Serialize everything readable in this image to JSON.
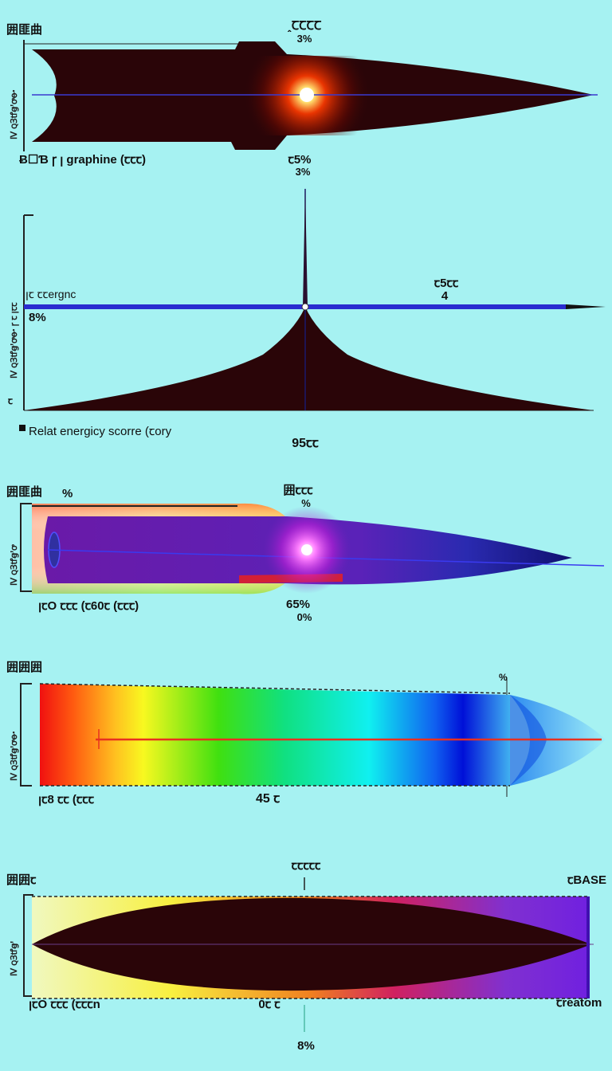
{
  "panels": [
    {
      "corner": "囲匪曲",
      "side": "Ⅳ ꞯꞫꝷꞡꞌꝍꝋꞏ",
      "bottom_left": "Ƀ☐Ɓ ꞅ ꞁ graphine (ꞇꞇꞇ)",
      "top_center": "ꞈꞆꞆꞆꞆ",
      "top_center_pct": "3%",
      "bottom_center": "ꞇ5%",
      "bottom_center_pct": "3%"
    },
    {
      "side": "Ⅳ ꞯꞫꝷꞡꞌꝍꝋꞏ ꞅ ꞇ ꞁꞇꞇ",
      "mid_left": "ꞁꞇ ꞇꞇergnc",
      "mid_left_pct": "8%",
      "low_left": "ꞇ",
      "right_label": "ꞇ5ꞇꞇ",
      "right_value": "4",
      "bottom_left": "Relat energicy scorre (ꞇory",
      "bottom_center": "95ꞇꞇ"
    },
    {
      "corner": "囲匪曲",
      "corner_pct": "%",
      "side": "Ⅳ ꞯꞫꝷꞡꞌꝍ",
      "top_center": "囲ꞇꞇꞇ",
      "top_center_pct": "%",
      "bottom_left": "ꞁꞇO ꞇꞇꞇ (ꞇ60ꞇ (ꞇꞇꞇ)",
      "bottom_center": "65%",
      "bottom_center_pct": "0%"
    },
    {
      "corner": "囲囲囲",
      "side": "Ⅳ ꞯꞫꝷꞡꞌꝍꝋꞏ",
      "top_right_mark": "%",
      "bottom_left": "ꞁꞇ8 ꞇꞇ (ꞇꞇꞇ",
      "bottom_center": "45 ꞇ"
    },
    {
      "corner": "囲囲ꞇ",
      "side": "Ⅳ ꞯꞫꝷꞡꞌ",
      "top_center": "ꞇꞇꞇꞇꞇ",
      "top_right": "ꞇBASE",
      "bottom_left": "ꞁꞇO ꞇꞇꞇ (ꞇꞇꞇn",
      "bottom_center": "0ꞇ ꞇ",
      "bottom_right": "ꞇreatom",
      "footer_pct": "8%"
    }
  ],
  "colors": {
    "background": "#a6f2f2",
    "dark_body": "#2a0508",
    "axis_blue": "#2a2cd0",
    "laser_red": "#e83020",
    "flare": "#ff3a00"
  }
}
